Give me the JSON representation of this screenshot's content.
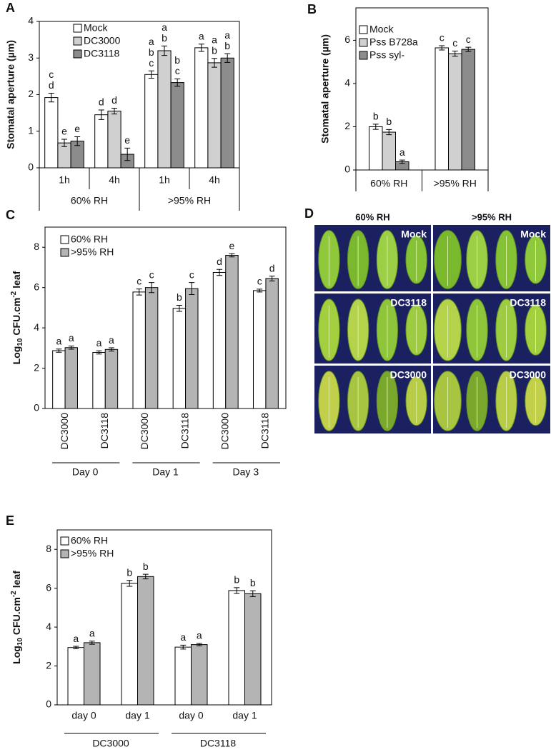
{
  "chart_data": [
    {
      "type": "bar",
      "panel": "A",
      "y_label": "Stomatal aperture (µm)",
      "categories": [
        "1h",
        "4h",
        "1h",
        "4h"
      ],
      "group_labels": [
        "60% RH",
        ">95% RH"
      ],
      "ylim": [
        0,
        4
      ],
      "yticks": [
        0,
        1,
        2,
        3,
        4
      ],
      "legend": "upper left",
      "series": [
        {
          "name": "Mock",
          "color": "#ffffff",
          "values": [
            1.92,
            1.45,
            2.55,
            3.28
          ],
          "errors": [
            0.12,
            0.13,
            0.1,
            0.1
          ],
          "labels": [
            [
              "c",
              "d"
            ],
            [
              "d"
            ],
            [
              "a",
              "b",
              "c"
            ],
            [
              "a"
            ]
          ]
        },
        {
          "name": "DC3000",
          "color": "#d0d0d0",
          "values": [
            0.68,
            1.55,
            3.2,
            2.87
          ],
          "errors": [
            0.1,
            0.08,
            0.13,
            0.12
          ],
          "labels": [
            [
              "e"
            ],
            [
              "d"
            ],
            [
              "a",
              "b"
            ],
            [
              "a",
              "b"
            ]
          ]
        },
        {
          "name": "DC3118",
          "color": "#8c8c8c",
          "values": [
            0.73,
            0.37,
            2.33,
            3.0
          ],
          "errors": [
            0.12,
            0.17,
            0.1,
            0.12
          ],
          "labels": [
            [
              "e"
            ],
            [
              "e"
            ],
            [
              "b",
              "c"
            ],
            [
              "a",
              "b"
            ]
          ]
        }
      ]
    },
    {
      "type": "bar",
      "panel": "B",
      "y_label": "Stomatal aperture (µm)",
      "categories": [
        "60% RH",
        ">95% RH"
      ],
      "ylim": [
        0,
        7.5
      ],
      "yticks": [
        0,
        2,
        4,
        6
      ],
      "legend": "upper left",
      "series": [
        {
          "name": "Mock",
          "color": "#ffffff",
          "values": [
            2.0,
            5.65
          ],
          "errors": [
            0.12,
            0.1
          ],
          "labels": [
            [
              "b"
            ],
            [
              "c"
            ]
          ]
        },
        {
          "name": "Pss B728a",
          "color": "#d0d0d0",
          "values": [
            1.75,
            5.38
          ],
          "errors": [
            0.12,
            0.12
          ],
          "labels": [
            [
              "b"
            ],
            [
              "c"
            ]
          ]
        },
        {
          "name": "Pss syl-",
          "color": "#8c8c8c",
          "values": [
            0.38,
            5.58
          ],
          "errors": [
            0.08,
            0.1
          ],
          "labels": [
            [
              "a"
            ],
            [
              "c"
            ]
          ]
        }
      ]
    },
    {
      "type": "bar",
      "panel": "C",
      "y_label": {
        "base": "Log",
        "subscript": "10",
        "unit": "CFU.cm",
        "superscript": "-2",
        "tail": "leaf"
      },
      "categories": [
        "DC3000",
        "DC3118",
        "DC3000",
        "DC3118",
        "DC3000",
        "DC3118"
      ],
      "group_labels": [
        "Day 0",
        "Day 1",
        "Day 3"
      ],
      "ylim": [
        0,
        9
      ],
      "yticks": [
        0,
        2,
        4,
        6,
        8
      ],
      "legend": "upper left",
      "series": [
        {
          "name": "60% RH",
          "color": "#ffffff",
          "values": [
            2.87,
            2.78,
            5.78,
            4.97,
            6.75,
            5.85
          ],
          "errors": [
            0.08,
            0.08,
            0.15,
            0.15,
            0.15,
            0.07
          ],
          "labels": [
            [
              "a"
            ],
            [
              "a"
            ],
            [
              "c"
            ],
            [
              "b"
            ],
            [
              "d"
            ],
            [
              "c"
            ]
          ]
        },
        {
          "name": ">95% RH",
          "color": "#b4b4b4",
          "values": [
            3.02,
            2.93,
            6.0,
            5.95,
            7.6,
            6.45
          ],
          "errors": [
            0.08,
            0.08,
            0.25,
            0.3,
            0.08,
            0.12
          ],
          "labels": [
            [
              "a"
            ],
            [
              "a"
            ],
            [
              "c"
            ],
            [
              "c"
            ],
            [
              "e"
            ],
            [
              "d"
            ]
          ]
        }
      ]
    },
    {
      "type": "bar",
      "panel": "E",
      "y_label": {
        "base": "Log",
        "subscript": "10",
        "unit": "CFU.cm",
        "superscript": "-2",
        "tail": "leaf"
      },
      "categories": [
        "day 0",
        "day 1",
        "day 0",
        "day 1"
      ],
      "group_labels": [
        "DC3000",
        "DC3118"
      ],
      "ylim": [
        0,
        9
      ],
      "yticks": [
        0,
        2,
        4,
        6,
        8
      ],
      "legend": "upper left",
      "series": [
        {
          "name": "60% RH",
          "color": "#ffffff",
          "values": [
            2.95,
            6.25,
            2.97,
            5.88
          ],
          "errors": [
            0.06,
            0.15,
            0.1,
            0.15
          ],
          "labels": [
            [
              "a"
            ],
            [
              "b"
            ],
            [
              "a"
            ],
            [
              "b"
            ]
          ]
        },
        {
          "name": ">95% RH",
          "color": "#b4b4b4",
          "values": [
            3.2,
            6.6,
            3.1,
            5.72
          ],
          "errors": [
            0.08,
            0.12,
            0.06,
            0.15
          ],
          "labels": [
            [
              "a"
            ],
            [
              "b"
            ],
            [
              "a"
            ],
            [
              "b"
            ]
          ]
        }
      ]
    }
  ],
  "photo_panel": {
    "panel": "D",
    "columns": [
      "60% RH",
      ">95% RH"
    ],
    "labels": [
      [
        "Mock",
        "Mock"
      ],
      [
        "DC3118",
        "DC3118"
      ],
      [
        "DC3000",
        "DC3000"
      ]
    ]
  }
}
